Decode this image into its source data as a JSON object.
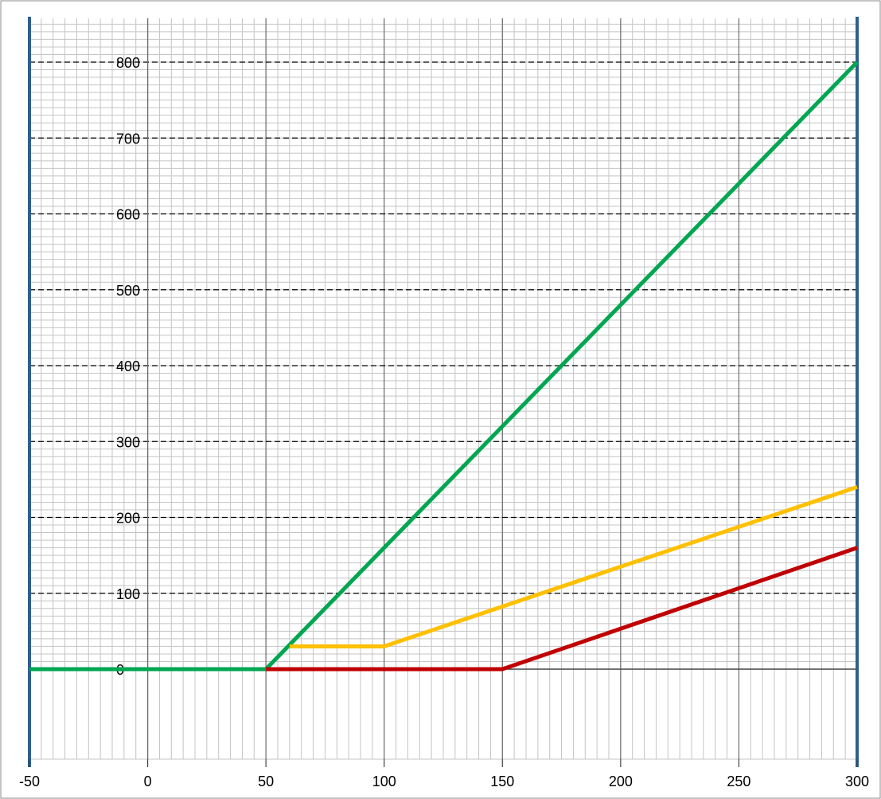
{
  "chart_data": {
    "type": "line",
    "title": "",
    "xlabel": "",
    "ylabel": "",
    "xlim": [
      -50,
      300
    ],
    "ylim": [
      0,
      800
    ],
    "grid": true,
    "x_ticks": [
      "-50",
      "0",
      "50",
      "100",
      "150",
      "200",
      "250",
      "300"
    ],
    "y_ticks": [
      "0",
      "100",
      "200",
      "300",
      "400",
      "500",
      "600",
      "700",
      "800"
    ],
    "vertical_lines": [
      {
        "x": -50,
        "color": "#2E5F8F"
      },
      {
        "x": 300,
        "color": "#2E5F8F"
      }
    ],
    "series": [
      {
        "color": "#00A651",
        "points": [
          [
            -50,
            0
          ],
          [
            50,
            0
          ],
          [
            300,
            800
          ]
        ]
      },
      {
        "color": "#FFC000",
        "points": [
          [
            60,
            30
          ],
          [
            100,
            30
          ],
          [
            300,
            240
          ]
        ]
      },
      {
        "color": "#C00000",
        "points": [
          [
            50,
            0
          ],
          [
            150,
            0
          ],
          [
            300,
            160
          ]
        ]
      }
    ]
  }
}
